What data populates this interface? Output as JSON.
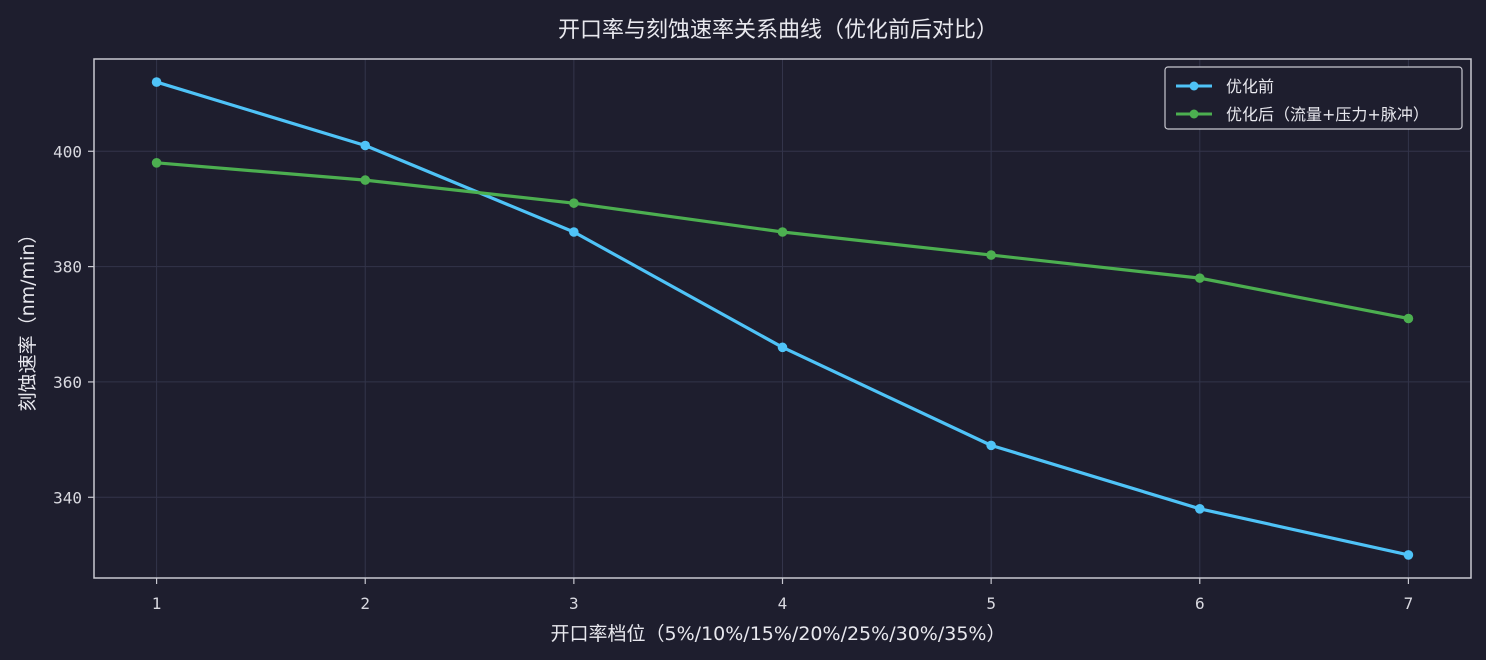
{
  "chart_data": {
    "type": "line",
    "title": "开口率与刻蚀速率关系曲线（优化前后对比）",
    "xlabel": "开口率档位（5%/10%/15%/20%/25%/30%/35%）",
    "ylabel": "刻蚀速率（nm/min）",
    "x": [
      1,
      2,
      3,
      4,
      5,
      6,
      7
    ],
    "xlim": [
      0.7,
      7.3
    ],
    "ylim": [
      326,
      416
    ],
    "yticks": [
      340,
      360,
      380,
      400
    ],
    "grid": true,
    "legend_position": "top-right",
    "series": [
      {
        "name": "优化前",
        "color": "#4fc3f7",
        "values": [
          412,
          401,
          386,
          366,
          349,
          338,
          330
        ]
      },
      {
        "name": "优化后（流量+压力+脉冲）",
        "color": "#4caf50",
        "values": [
          398,
          395,
          391,
          386,
          382,
          378,
          371
        ]
      }
    ]
  }
}
